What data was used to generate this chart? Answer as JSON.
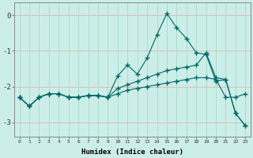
{
  "xlabel": "Humidex (Indice chaleur)",
  "background_color": "#cceee8",
  "grid_color_h": "#ddbbbb",
  "grid_color_v": "#aaddcc",
  "line_color": "#006666",
  "xlim": [
    -0.5,
    23.5
  ],
  "ylim": [
    -3.4,
    0.35
  ],
  "yticks": [
    0,
    -1,
    -2,
    -3
  ],
  "xticks": [
    0,
    1,
    2,
    3,
    4,
    5,
    6,
    7,
    8,
    9,
    10,
    11,
    12,
    13,
    14,
    15,
    16,
    17,
    18,
    19,
    20,
    21,
    22,
    23
  ],
  "line1_x": [
    0,
    1,
    2,
    3,
    4,
    5,
    6,
    7,
    8,
    9,
    10,
    11,
    12,
    13,
    14,
    15,
    16,
    17,
    18,
    19,
    20,
    21,
    22,
    23
  ],
  "line1_y": [
    -2.3,
    -2.55,
    -2.3,
    -2.2,
    -2.2,
    -2.3,
    -2.3,
    -2.25,
    -2.25,
    -2.3,
    -1.7,
    -1.4,
    -1.65,
    -1.2,
    -0.55,
    0.05,
    -0.35,
    -0.65,
    -1.05,
    -1.1,
    -1.85,
    -1.8,
    -2.75,
    -3.1
  ],
  "line2_x": [
    0,
    1,
    2,
    3,
    4,
    5,
    6,
    7,
    8,
    9,
    10,
    11,
    12,
    13,
    14,
    15,
    16,
    17,
    18,
    19,
    20,
    21,
    22,
    23
  ],
  "line2_y": [
    -2.3,
    -2.55,
    -2.3,
    -2.2,
    -2.2,
    -2.3,
    -2.3,
    -2.25,
    -2.25,
    -2.3,
    -2.05,
    -1.95,
    -1.85,
    -1.75,
    -1.65,
    -1.55,
    -1.5,
    -1.45,
    -1.4,
    -1.05,
    -1.75,
    -1.8,
    -2.75,
    -3.1
  ],
  "line3_x": [
    0,
    1,
    2,
    3,
    4,
    5,
    6,
    7,
    8,
    9,
    10,
    11,
    12,
    13,
    14,
    15,
    16,
    17,
    18,
    19,
    20,
    21,
    22,
    23
  ],
  "line3_y": [
    -2.3,
    -2.55,
    -2.3,
    -2.2,
    -2.2,
    -2.3,
    -2.3,
    -2.25,
    -2.25,
    -2.3,
    -2.2,
    -2.1,
    -2.05,
    -2.0,
    -1.95,
    -1.9,
    -1.85,
    -1.8,
    -1.75,
    -1.75,
    -1.8,
    -2.3,
    -2.3,
    -2.2
  ]
}
